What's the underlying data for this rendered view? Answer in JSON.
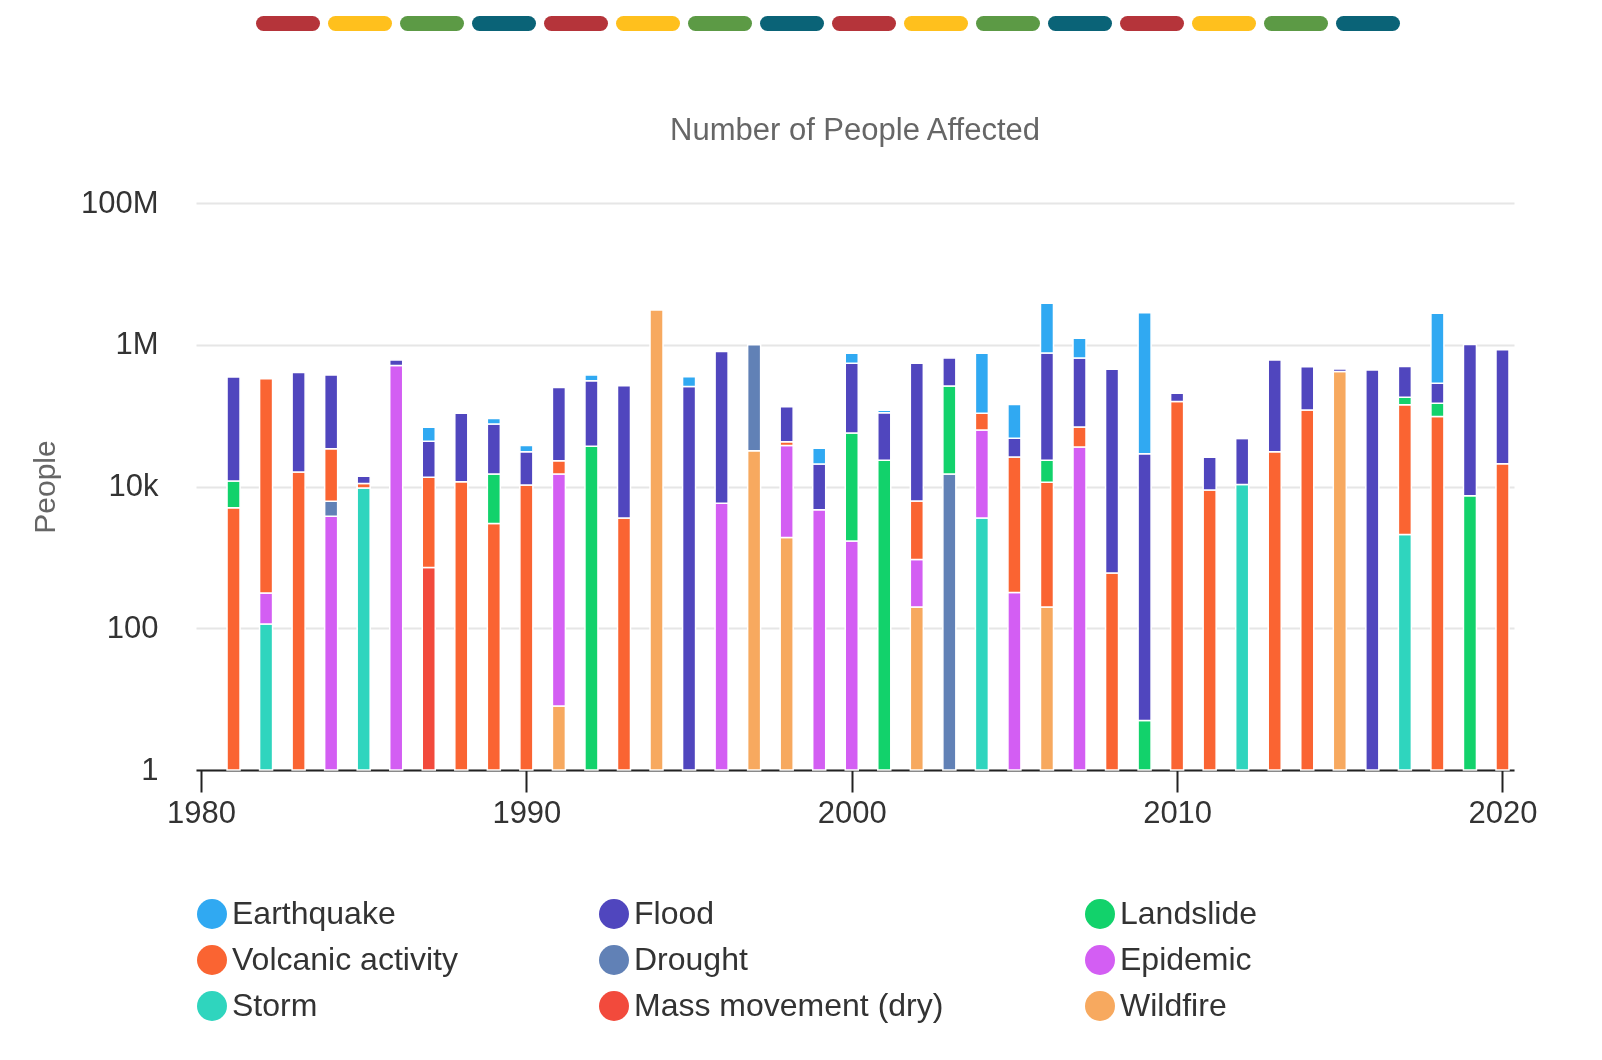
{
  "chart_data": {
    "type": "bar",
    "stacked": true,
    "title": "Number of People Affected",
    "ylabel": "People",
    "log": true,
    "grid": "y",
    "legend": "bottom",
    "x": [
      1981,
      1982,
      1983,
      1984,
      1985,
      1986,
      1987,
      1988,
      1989,
      1990,
      1991,
      1992,
      1993,
      1994,
      1995,
      1996,
      1997,
      1998,
      1999,
      2000,
      2001,
      2002,
      2003,
      2004,
      2005,
      2006,
      2007,
      2008,
      2009,
      2010,
      2011,
      2012,
      2013,
      2014,
      2015,
      2016,
      2017,
      2018,
      2019,
      2020
    ],
    "xlim": [
      1980,
      2020.2
    ],
    "xticks": [
      1980,
      1990,
      2000,
      2010,
      2020
    ],
    "ylim": [
      1,
      100000000
    ],
    "yticks": [
      {
        "value": 1,
        "label": "1"
      },
      {
        "value": 100,
        "label": "100"
      },
      {
        "value": 10000,
        "label": "10k"
      },
      {
        "value": 1000000,
        "label": "1M"
      },
      {
        "value": 100000000,
        "label": "100M"
      }
    ],
    "series": [
      {
        "name": "Wildfire",
        "color": "#f7a95f",
        "values": [
          null,
          null,
          null,
          null,
          null,
          null,
          null,
          null,
          null,
          null,
          8,
          null,
          null,
          3100000,
          null,
          null,
          32000,
          1900,
          null,
          null,
          null,
          200,
          null,
          null,
          null,
          200,
          null,
          null,
          null,
          null,
          null,
          null,
          null,
          null,
          420000,
          null,
          null,
          null,
          null,
          null
        ]
      },
      {
        "name": "Mass movement (dry)",
        "color": "#f24a3c",
        "values": [
          null,
          null,
          null,
          null,
          null,
          null,
          720,
          null,
          null,
          null,
          null,
          null,
          null,
          null,
          null,
          null,
          null,
          null,
          null,
          null,
          null,
          null,
          null,
          null,
          null,
          null,
          null,
          null,
          null,
          null,
          null,
          null,
          null,
          null,
          null,
          null,
          null,
          null,
          null,
          null
        ]
      },
      {
        "name": "Storm",
        "color": "#2fd5be",
        "values": [
          null,
          115,
          null,
          null,
          9500,
          null,
          null,
          null,
          null,
          null,
          null,
          null,
          null,
          null,
          null,
          null,
          null,
          null,
          null,
          null,
          null,
          null,
          null,
          3600,
          null,
          null,
          null,
          null,
          null,
          null,
          null,
          10700,
          null,
          null,
          null,
          null,
          2100,
          null,
          null,
          null
        ]
      },
      {
        "name": "Epidemic",
        "color": "#d35ef3",
        "values": [
          null,
          200,
          null,
          3800,
          null,
          510000,
          null,
          null,
          null,
          null,
          15000,
          null,
          null,
          null,
          null,
          5800,
          null,
          36000,
          4700,
          1700,
          null,
          730,
          null,
          59000,
          320,
          null,
          36000,
          null,
          null,
          null,
          null,
          null,
          null,
          null,
          null,
          null,
          null,
          null,
          null,
          null
        ]
      },
      {
        "name": "Drought",
        "color": "#6181b6",
        "values": [
          null,
          null,
          null,
          2400,
          null,
          null,
          null,
          null,
          null,
          null,
          null,
          null,
          null,
          null,
          null,
          null,
          970000,
          null,
          null,
          null,
          null,
          null,
          15000,
          null,
          null,
          null,
          null,
          null,
          null,
          null,
          null,
          null,
          null,
          null,
          null,
          null,
          null,
          null,
          null,
          null
        ]
      },
      {
        "name": "Volcanic activity",
        "color": "#fa6432",
        "values": [
          5000,
          330000,
          16000,
          28000,
          1500,
          null,
          12800,
          11700,
          3000,
          10500,
          8000,
          null,
          3600,
          null,
          null,
          null,
          null,
          5000,
          null,
          null,
          null,
          5300,
          null,
          45000,
          25700,
          11300,
          33000,
          600,
          null,
          158000,
          8900,
          null,
          31000,
          120000,
          null,
          null,
          140000,
          97000,
          null,
          21000
        ]
      },
      {
        "name": "Landslide",
        "color": "#12d26b",
        "values": [
          7000,
          null,
          null,
          null,
          null,
          null,
          null,
          null,
          12000,
          null,
          null,
          37000,
          null,
          null,
          null,
          null,
          null,
          null,
          null,
          55000,
          23500,
          null,
          247000,
          null,
          null,
          12000,
          null,
          null,
          5,
          null,
          null,
          null,
          null,
          null,
          null,
          null,
          40000,
          52000,
          7400,
          null
        ]
      },
      {
        "name": "Flood",
        "color": "#5046be",
        "values": [
          340000,
          null,
          390000,
          340000,
          3000,
          100000,
          30000,
          96000,
          61000,
          20500,
          227000,
          273000,
          261000,
          null,
          257000,
          800000,
          null,
          91000,
          16000,
          490000,
          86000,
          540000,
          390000,
          null,
          22000,
          740000,
          580000,
          450000,
          29000,
          49000,
          17000,
          37000,
          580000,
          370000,
          35000,
          440000,
          310000,
          138000,
          1000000,
          830000
        ]
      },
      {
        "name": "Earthquake",
        "color": "#30a9f2",
        "values": [
          null,
          null,
          null,
          null,
          null,
          null,
          25000,
          null,
          15000,
          7000,
          null,
          65000,
          null,
          null,
          98000,
          null,
          null,
          null,
          14000,
          210000,
          10000,
          null,
          null,
          650000,
          96000,
          3100000,
          590000,
          null,
          2800000,
          null,
          null,
          2000,
          null,
          null,
          null,
          null,
          null,
          2500000,
          null,
          null
        ]
      }
    ]
  }
}
